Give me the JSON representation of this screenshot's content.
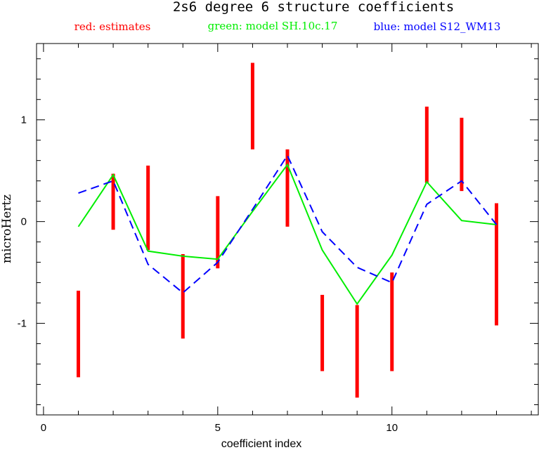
{
  "chart_data": {
    "type": "line",
    "title": "2s6 degree 6 structure coefficients",
    "xlabel": "coefficient index",
    "ylabel": "microHertz",
    "xlim": [
      -0.2,
      14.2
    ],
    "ylim": [
      -1.9,
      1.75
    ],
    "x_ticks": [
      0,
      5,
      10
    ],
    "y_ticks": [
      -1,
      0,
      1
    ],
    "x": [
      1,
      2,
      3,
      4,
      5,
      6,
      7,
      8,
      9,
      10,
      11,
      12,
      13
    ],
    "legend": [
      {
        "label": "red: estimates",
        "color": "#ff0000"
      },
      {
        "label": "green: model SH.10c.17",
        "color": "#00ee00"
      },
      {
        "label": "blue: model S12_WM13",
        "color": "#0000ff"
      }
    ],
    "series": [
      {
        "name": "estimates",
        "kind": "error-bar",
        "color": "#ff0000",
        "low": [
          -1.53,
          -0.08,
          -0.28,
          -1.15,
          -0.46,
          0.71,
          -0.05,
          -1.47,
          -1.73,
          -1.47,
          0.38,
          0.3,
          -1.02
        ],
        "high": [
          -0.68,
          0.47,
          0.55,
          -0.32,
          0.25,
          1.56,
          0.71,
          -0.72,
          -0.82,
          -0.5,
          1.13,
          1.02,
          0.18
        ]
      },
      {
        "name": "model SH.10c.17",
        "kind": "line",
        "color": "#00ee00",
        "values": [
          -0.05,
          0.46,
          -0.29,
          -0.34,
          -0.37,
          0.1,
          0.56,
          -0.28,
          -0.81,
          -0.33,
          0.39,
          0.01,
          -0.03
        ]
      },
      {
        "name": "model S12_WM13",
        "kind": "dashed-line",
        "color": "#0000ff",
        "values": [
          0.28,
          0.4,
          -0.42,
          -0.7,
          -0.4,
          0.12,
          0.65,
          -0.1,
          -0.45,
          -0.6,
          0.17,
          0.4,
          -0.03
        ]
      }
    ],
    "grid": false,
    "legend_position": "top"
  }
}
